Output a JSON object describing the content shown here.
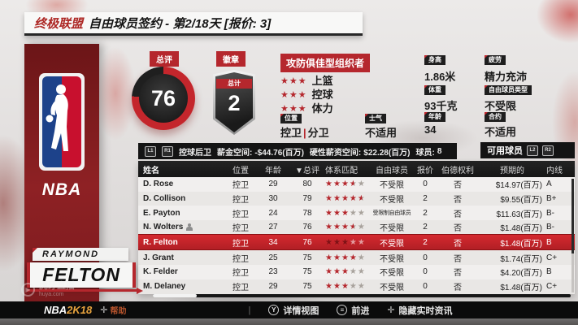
{
  "title": {
    "league": "终极联盟",
    "text": "自由球员签约 - 第2/18天 [报价: 3]"
  },
  "overall": {
    "label": "总评",
    "value": "76",
    "percent": 76
  },
  "badge": {
    "label": "徽章",
    "band": "总计",
    "count": "2"
  },
  "archetype": {
    "title": "攻防俱佳型组织者",
    "skills": [
      {
        "label": "上篮",
        "stars": 3
      },
      {
        "label": "控球",
        "stars": 3
      },
      {
        "label": "体力",
        "stars": 3
      }
    ]
  },
  "fields": {
    "position": {
      "label": "位置",
      "a": "控卫",
      "divider": "|",
      "b": "分卫"
    },
    "morale": {
      "label": "士气",
      "value": "不适用"
    },
    "height": {
      "label": "身高",
      "value": "1.86米"
    },
    "fatigue": {
      "label": "疲劳",
      "value": "精力充沛"
    },
    "weight": {
      "label": "体重",
      "value": "93千克"
    },
    "fa_type": {
      "label": "自由球员类型",
      "value": "不受限"
    },
    "age": {
      "label": "年龄",
      "value": "34"
    },
    "contract": {
      "label": "合约",
      "value": "不适用"
    }
  },
  "cap_bar": {
    "buttons": [
      "L1",
      "R1"
    ],
    "position_filter": "控球后卫",
    "cap_label": "薪金空间:",
    "cap_value": "-$44.76(百万)",
    "hard_label": "硬性薪资空间:",
    "hard_value": "$22.28(百万)",
    "players_label": "球员:",
    "players_value": "8"
  },
  "available": {
    "title": "可用球员",
    "buttons": [
      "L2",
      "R2"
    ]
  },
  "table": {
    "columns": [
      "姓名",
      "位置",
      "年龄",
      "▼总评",
      "体系匹配",
      "自由球员",
      "报价",
      "伯德权利",
      "预期的",
      "内线"
    ],
    "star_max": 5,
    "rows": [
      {
        "name": "D. Rose",
        "pos": "控卫",
        "age": "29",
        "ovr": "80",
        "stars": 3.5,
        "fa": "不受限",
        "offer": "0",
        "bird": "否",
        "salary": "$14.97(百万)",
        "grade": "A",
        "selected": false,
        "icon": false
      },
      {
        "name": "D. Collison",
        "pos": "控卫",
        "age": "30",
        "ovr": "79",
        "stars": 4.5,
        "fa": "不受限",
        "offer": "2",
        "bird": "否",
        "salary": "$9.55(百万)",
        "grade": "B+",
        "selected": false,
        "icon": false
      },
      {
        "name": "E. Payton",
        "pos": "控卫",
        "age": "24",
        "ovr": "78",
        "stars": 3,
        "fa": "受限制自由球员",
        "offer": "2",
        "bird": "否",
        "salary": "$11.63(百万)",
        "grade": "B-",
        "selected": false,
        "icon": false
      },
      {
        "name": "N. Wolters",
        "pos": "控卫",
        "age": "27",
        "ovr": "76",
        "stars": 3.5,
        "fa": "不受限",
        "offer": "2",
        "bird": "否",
        "salary": "$1.48(百万)",
        "grade": "B-",
        "selected": false,
        "icon": true
      },
      {
        "name": "R. Felton",
        "pos": "控卫",
        "age": "34",
        "ovr": "76",
        "stars": 3,
        "fa": "不受限",
        "offer": "2",
        "bird": "否",
        "salary": "$1.48(百万)",
        "grade": "B",
        "selected": true,
        "icon": false
      },
      {
        "name": "J. Grant",
        "pos": "控卫",
        "age": "25",
        "ovr": "75",
        "stars": 4,
        "fa": "不受限",
        "offer": "0",
        "bird": "否",
        "salary": "$1.74(百万)",
        "grade": "C+",
        "selected": false,
        "icon": false
      },
      {
        "name": "K. Felder",
        "pos": "控卫",
        "age": "23",
        "ovr": "75",
        "stars": 3,
        "fa": "不受限",
        "offer": "0",
        "bird": "否",
        "salary": "$4.20(百万)",
        "grade": "B",
        "selected": false,
        "icon": false
      },
      {
        "name": "M. Delaney",
        "pos": "控卫",
        "age": "29",
        "ovr": "75",
        "stars": 3,
        "fa": "不受限",
        "offer": "0",
        "bird": "否",
        "salary": "$1.48(百万)",
        "grade": "C+",
        "selected": false,
        "icon": false
      }
    ]
  },
  "sidebar": {
    "logo_text": "NBA"
  },
  "nameplate": {
    "first": "RAYMOND",
    "last": "FELTON"
  },
  "footer": {
    "logo_nba": "NBA",
    "logo_2k": "2K18",
    "help": "帮助",
    "separator": "|",
    "actions": [
      {
        "icon": "Y",
        "label": "详情视图"
      },
      {
        "icon": "≡",
        "label": "前进"
      },
      {
        "icon": "✛",
        "label": "隐藏实时资讯"
      }
    ]
  },
  "watermark": {
    "line1": "虎牙直播",
    "line2": "huya.com"
  },
  "colors": {
    "accent_red": "#b5272d",
    "selected_row": "#c9262c",
    "star_empty": "#a8a29c",
    "gold": "#e8a33d"
  }
}
